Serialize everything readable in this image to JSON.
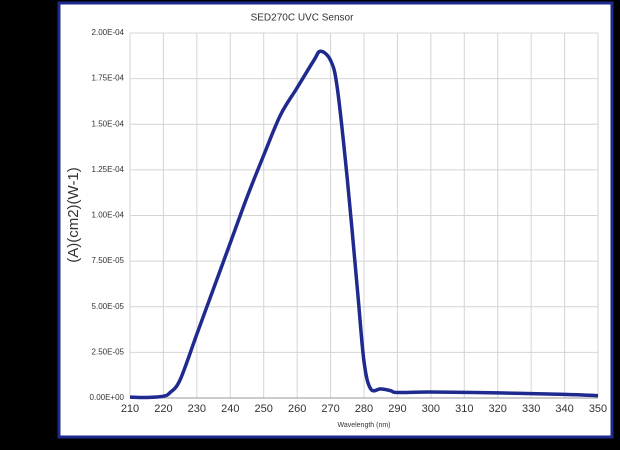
{
  "chart_data": {
    "type": "line",
    "title": "SED270C UVC Sensor",
    "x_label": "Wavelength (nm)",
    "y_label": "(A)(cm2)(W-1)",
    "x": [
      210,
      215,
      220,
      222,
      225,
      230,
      235,
      240,
      245,
      250,
      255,
      260,
      265,
      267,
      270,
      272,
      275,
      278,
      280,
      282,
      285,
      288,
      290,
      300,
      320,
      340,
      350
    ],
    "series": [
      {
        "name": "SED270C",
        "color": "#1f2a8f",
        "values": [
          5e-07,
          3e-07,
          1e-06,
          3e-06,
          1e-05,
          3.5e-05,
          6e-05,
          8.5e-05,
          0.00011,
          0.000133,
          0.000155,
          0.00017,
          0.000185,
          0.00019,
          0.000185,
          0.00017,
          0.00012,
          6e-05,
          2e-05,
          5e-06,
          5e-06,
          4e-06,
          3e-06,
          3.3e-06,
          2.8e-06,
          2e-06,
          1.3e-06
        ]
      }
    ],
    "xlim": [
      210,
      350
    ],
    "xticks": [
      210,
      220,
      230,
      240,
      250,
      260,
      270,
      280,
      290,
      300,
      310,
      320,
      330,
      340,
      350
    ],
    "ylim": [
      0,
      0.0002
    ],
    "yticks": [
      {
        "value": 0,
        "label": "0.00E+00"
      },
      {
        "value": 2.5e-05,
        "label": "2.50E-05"
      },
      {
        "value": 5e-05,
        "label": "5.00E-05"
      },
      {
        "value": 7.5e-05,
        "label": "7.50E-05"
      },
      {
        "value": 0.0001,
        "label": "1.00E-04"
      },
      {
        "value": 0.000125,
        "label": "1.25E-04"
      },
      {
        "value": 0.00015,
        "label": "1.50E-04"
      },
      {
        "value": 0.000175,
        "label": "1.75E-04"
      },
      {
        "value": 0.0002,
        "label": "2.00E-04"
      }
    ],
    "grid": true
  }
}
